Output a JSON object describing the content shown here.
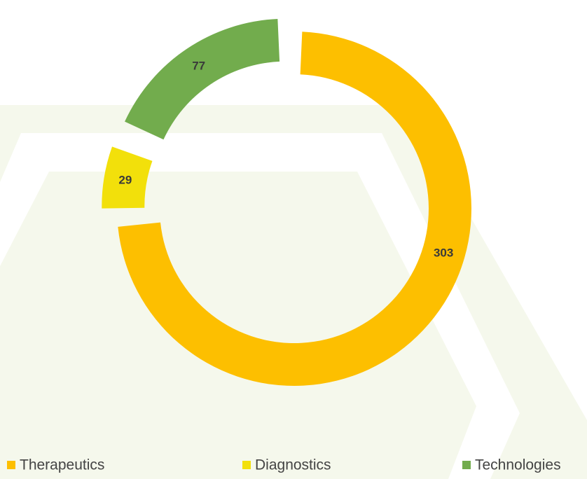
{
  "chart_data": {
    "type": "donut",
    "categories": [
      "Therapeutics",
      "Diagnostics",
      "Technologies"
    ],
    "values": [
      303,
      29,
      77
    ],
    "colors": [
      "#fdbf00",
      "#f2e00b",
      "#72ac4d"
    ],
    "legend": "bottom"
  }
}
